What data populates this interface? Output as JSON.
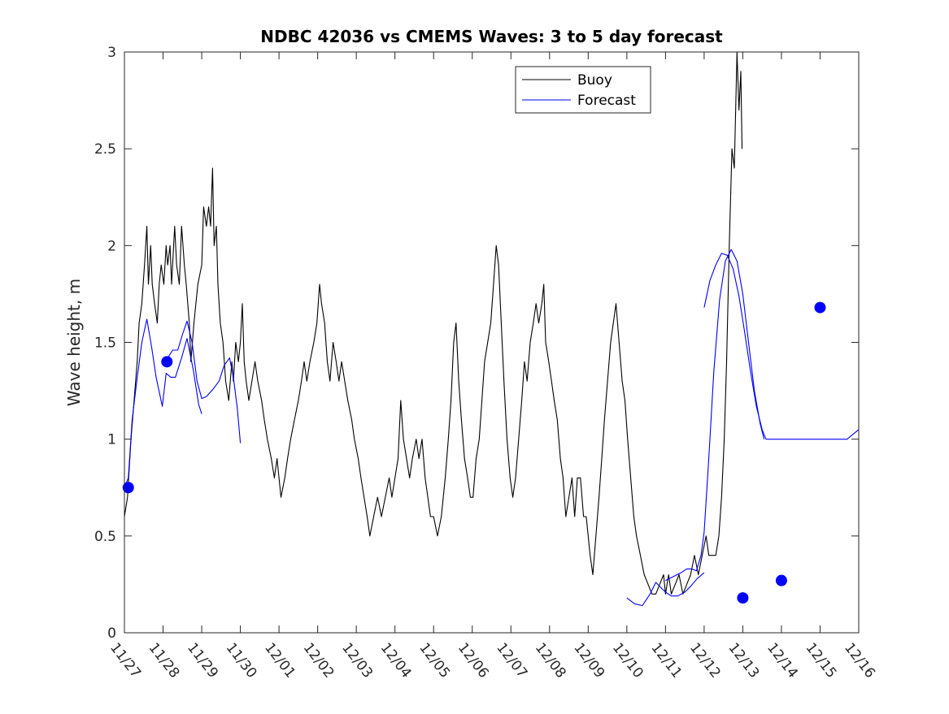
{
  "chart_data": {
    "type": "line",
    "title": "NDBC 42036 vs CMEMS Waves: 3 to 5 day forecast",
    "xlabel": "",
    "ylabel": "Wave height, m",
    "xlim": [
      "11/27",
      "12/16"
    ],
    "ylim": [
      0,
      3
    ],
    "x_tick_labels": [
      "11/27",
      "11/28",
      "11/29",
      "11/30",
      "12/01",
      "12/02",
      "12/03",
      "12/04",
      "12/05",
      "12/06",
      "12/07",
      "12/08",
      "12/09",
      "12/10",
      "12/11",
      "12/12",
      "12/13",
      "12/14",
      "12/15",
      "12/16"
    ],
    "y_ticks": [
      0,
      0.5,
      1,
      1.5,
      2,
      2.5,
      3
    ],
    "y_tick_labels": [
      "0",
      "0.5",
      "1",
      "1.5",
      "2",
      "2.5",
      "3"
    ],
    "grid": false,
    "legend": {
      "position": "top-right",
      "entries": [
        "Buoy",
        "Forecast"
      ]
    },
    "colors": {
      "buoy": "#000000",
      "forecast": "#0000ff",
      "axis": "#262626"
    },
    "series": [
      {
        "name": "Buoy",
        "color": "#000000",
        "points": [
          [
            0.0,
            0.6
          ],
          [
            0.08,
            0.7
          ],
          [
            0.17,
            1.0
          ],
          [
            0.25,
            1.2
          ],
          [
            0.33,
            1.4
          ],
          [
            0.38,
            1.6
          ],
          [
            0.45,
            1.7
          ],
          [
            0.52,
            1.9
          ],
          [
            0.58,
            2.1
          ],
          [
            0.62,
            1.8
          ],
          [
            0.68,
            2.0
          ],
          [
            0.72,
            1.8
          ],
          [
            0.78,
            1.7
          ],
          [
            0.85,
            1.6
          ],
          [
            0.9,
            1.8
          ],
          [
            0.95,
            1.9
          ],
          [
            1.02,
            1.8
          ],
          [
            1.08,
            2.0
          ],
          [
            1.12,
            1.9
          ],
          [
            1.18,
            2.0
          ],
          [
            1.22,
            1.8
          ],
          [
            1.3,
            2.1
          ],
          [
            1.35,
            1.9
          ],
          [
            1.42,
            1.8
          ],
          [
            1.48,
            2.1
          ],
          [
            1.55,
            1.9
          ],
          [
            1.6,
            1.8
          ],
          [
            1.68,
            1.6
          ],
          [
            1.72,
            1.4
          ],
          [
            1.8,
            1.6
          ],
          [
            1.85,
            1.7
          ],
          [
            1.9,
            1.8
          ],
          [
            2.0,
            1.9
          ],
          [
            2.05,
            2.2
          ],
          [
            2.12,
            2.1
          ],
          [
            2.18,
            2.2
          ],
          [
            2.23,
            2.1
          ],
          [
            2.28,
            2.4
          ],
          [
            2.32,
            2.0
          ],
          [
            2.38,
            2.1
          ],
          [
            2.42,
            1.8
          ],
          [
            2.48,
            1.6
          ],
          [
            2.55,
            1.5
          ],
          [
            2.62,
            1.3
          ],
          [
            2.7,
            1.2
          ],
          [
            2.78,
            1.4
          ],
          [
            2.82,
            1.3
          ],
          [
            2.88,
            1.5
          ],
          [
            2.95,
            1.4
          ],
          [
            3.0,
            1.5
          ],
          [
            3.05,
            1.7
          ],
          [
            3.1,
            1.4
          ],
          [
            3.15,
            1.3
          ],
          [
            3.22,
            1.2
          ],
          [
            3.3,
            1.3
          ],
          [
            3.38,
            1.4
          ],
          [
            3.45,
            1.3
          ],
          [
            3.55,
            1.2
          ],
          [
            3.62,
            1.1
          ],
          [
            3.7,
            1.0
          ],
          [
            3.8,
            0.9
          ],
          [
            3.88,
            0.8
          ],
          [
            3.95,
            0.9
          ],
          [
            4.05,
            0.7
          ],
          [
            4.15,
            0.8
          ],
          [
            4.22,
            0.9
          ],
          [
            4.3,
            1.0
          ],
          [
            4.4,
            1.1
          ],
          [
            4.5,
            1.2
          ],
          [
            4.58,
            1.3
          ],
          [
            4.65,
            1.4
          ],
          [
            4.72,
            1.3
          ],
          [
            4.8,
            1.4
          ],
          [
            4.9,
            1.5
          ],
          [
            4.98,
            1.6
          ],
          [
            5.05,
            1.8
          ],
          [
            5.1,
            1.7
          ],
          [
            5.18,
            1.6
          ],
          [
            5.25,
            1.4
          ],
          [
            5.32,
            1.3
          ],
          [
            5.4,
            1.5
          ],
          [
            5.48,
            1.4
          ],
          [
            5.55,
            1.3
          ],
          [
            5.62,
            1.4
          ],
          [
            5.7,
            1.3
          ],
          [
            5.78,
            1.2
          ],
          [
            5.88,
            1.1
          ],
          [
            5.95,
            1.0
          ],
          [
            6.05,
            0.9
          ],
          [
            6.12,
            0.8
          ],
          [
            6.2,
            0.7
          ],
          [
            6.28,
            0.6
          ],
          [
            6.35,
            0.5
          ],
          [
            6.45,
            0.6
          ],
          [
            6.55,
            0.7
          ],
          [
            6.65,
            0.6
          ],
          [
            6.75,
            0.7
          ],
          [
            6.85,
            0.8
          ],
          [
            6.92,
            0.7
          ],
          [
            7.0,
            0.8
          ],
          [
            7.08,
            0.9
          ],
          [
            7.15,
            1.2
          ],
          [
            7.22,
            1.0
          ],
          [
            7.3,
            0.9
          ],
          [
            7.38,
            0.8
          ],
          [
            7.45,
            0.9
          ],
          [
            7.55,
            1.0
          ],
          [
            7.62,
            0.9
          ],
          [
            7.7,
            1.0
          ],
          [
            7.78,
            0.8
          ],
          [
            7.85,
            0.7
          ],
          [
            7.92,
            0.6
          ],
          [
            8.0,
            0.6
          ],
          [
            8.1,
            0.5
          ],
          [
            8.2,
            0.6
          ],
          [
            8.3,
            0.8
          ],
          [
            8.38,
            1.0
          ],
          [
            8.45,
            1.2
          ],
          [
            8.52,
            1.5
          ],
          [
            8.58,
            1.6
          ],
          [
            8.65,
            1.3
          ],
          [
            8.72,
            1.1
          ],
          [
            8.8,
            0.9
          ],
          [
            8.88,
            0.8
          ],
          [
            8.95,
            0.7
          ],
          [
            9.02,
            0.7
          ],
          [
            9.1,
            0.9
          ],
          [
            9.18,
            1.0
          ],
          [
            9.25,
            1.2
          ],
          [
            9.32,
            1.4
          ],
          [
            9.4,
            1.5
          ],
          [
            9.48,
            1.6
          ],
          [
            9.55,
            1.8
          ],
          [
            9.62,
            2.0
          ],
          [
            9.68,
            1.9
          ],
          [
            9.75,
            1.6
          ],
          [
            9.82,
            1.3
          ],
          [
            9.9,
            1.0
          ],
          [
            9.98,
            0.8
          ],
          [
            10.05,
            0.7
          ],
          [
            10.12,
            0.8
          ],
          [
            10.2,
            1.0
          ],
          [
            10.28,
            1.2
          ],
          [
            10.35,
            1.4
          ],
          [
            10.42,
            1.3
          ],
          [
            10.5,
            1.5
          ],
          [
            10.58,
            1.6
          ],
          [
            10.65,
            1.7
          ],
          [
            10.72,
            1.6
          ],
          [
            10.8,
            1.7
          ],
          [
            10.85,
            1.8
          ],
          [
            10.9,
            1.5
          ],
          [
            10.98,
            1.4
          ],
          [
            11.05,
            1.3
          ],
          [
            11.12,
            1.2
          ],
          [
            11.2,
            1.1
          ],
          [
            11.28,
            0.9
          ],
          [
            11.35,
            0.8
          ],
          [
            11.42,
            0.6
          ],
          [
            11.5,
            0.7
          ],
          [
            11.58,
            0.8
          ],
          [
            11.65,
            0.6
          ],
          [
            11.72,
            0.8
          ],
          [
            11.8,
            0.8
          ],
          [
            11.88,
            0.6
          ],
          [
            11.95,
            0.6
          ],
          [
            12.05,
            0.4
          ],
          [
            12.12,
            0.3
          ],
          [
            12.2,
            0.5
          ],
          [
            12.28,
            0.7
          ],
          [
            12.35,
            0.9
          ],
          [
            12.42,
            1.1
          ],
          [
            12.5,
            1.3
          ],
          [
            12.58,
            1.5
          ],
          [
            12.65,
            1.6
          ],
          [
            12.72,
            1.7
          ],
          [
            12.8,
            1.5
          ],
          [
            12.88,
            1.3
          ],
          [
            12.95,
            1.2
          ],
          [
            13.02,
            1.0
          ],
          [
            13.1,
            0.8
          ],
          [
            13.18,
            0.6
          ],
          [
            13.25,
            0.5
          ],
          [
            13.35,
            0.4
          ],
          [
            13.45,
            0.3
          ],
          [
            13.55,
            0.25
          ],
          [
            13.65,
            0.2
          ],
          [
            13.75,
            0.2
          ],
          [
            13.85,
            0.25
          ],
          [
            13.95,
            0.3
          ],
          [
            14.0,
            0.2
          ],
          [
            14.08,
            0.3
          ],
          [
            14.15,
            0.2
          ],
          [
            14.25,
            0.25
          ],
          [
            14.35,
            0.3
          ],
          [
            14.45,
            0.2
          ],
          [
            14.55,
            0.25
          ],
          [
            14.65,
            0.3
          ],
          [
            14.75,
            0.4
          ],
          [
            14.85,
            0.3
          ],
          [
            14.95,
            0.4
          ],
          [
            15.05,
            0.5
          ],
          [
            15.12,
            0.4
          ],
          [
            15.2,
            0.4
          ],
          [
            15.3,
            0.4
          ],
          [
            15.38,
            0.5
          ],
          [
            15.45,
            0.7
          ],
          [
            15.52,
            1.0
          ],
          [
            15.58,
            1.4
          ],
          [
            15.65,
            2.0
          ],
          [
            15.72,
            2.5
          ],
          [
            15.78,
            2.4
          ],
          [
            15.85,
            3.0
          ],
          [
            15.9,
            2.7
          ],
          [
            15.95,
            2.9
          ],
          [
            15.98,
            2.5
          ]
        ]
      },
      {
        "name": "Forecast",
        "color": "#0000ff",
        "points": [
          [
            0.0,
            0.75
          ],
          [
            0.1,
            0.8
          ],
          [
            0.2,
            1.1
          ],
          [
            0.32,
            1.3
          ],
          [
            0.45,
            1.5
          ],
          [
            0.58,
            1.62
          ],
          [
            0.7,
            1.48
          ],
          [
            0.82,
            1.32
          ],
          [
            0.98,
            1.17
          ],
          [
            1.08,
            1.34
          ],
          [
            1.2,
            1.32
          ],
          [
            1.32,
            1.32
          ],
          [
            1.48,
            1.42
          ],
          [
            1.62,
            1.52
          ],
          [
            1.78,
            1.36
          ],
          [
            1.92,
            1.18
          ],
          [
            2.0,
            1.13
          ]
        ]
      },
      {
        "name": "Forecast",
        "color": "#0000ff",
        "points": [
          [
            1.0,
            1.4
          ],
          [
            1.12,
            1.42
          ],
          [
            1.25,
            1.46
          ],
          [
            1.38,
            1.46
          ],
          [
            1.5,
            1.54
          ],
          [
            1.62,
            1.61
          ],
          [
            1.75,
            1.5
          ],
          [
            1.88,
            1.3
          ],
          [
            2.0,
            1.21
          ],
          [
            2.12,
            1.22
          ],
          [
            2.3,
            1.26
          ],
          [
            2.45,
            1.3
          ],
          [
            2.58,
            1.38
          ],
          [
            2.72,
            1.42
          ],
          [
            2.82,
            1.32
          ],
          [
            2.92,
            1.16
          ],
          [
            3.0,
            0.98
          ]
        ]
      },
      {
        "name": "Forecast",
        "color": "#0000ff",
        "points": [
          [
            13.0,
            0.18
          ],
          [
            13.2,
            0.15
          ],
          [
            13.4,
            0.14
          ],
          [
            13.6,
            0.2
          ],
          [
            13.75,
            0.26
          ],
          [
            13.9,
            0.23
          ],
          [
            14.0,
            0.21
          ],
          [
            14.15,
            0.19
          ],
          [
            14.32,
            0.19
          ],
          [
            14.5,
            0.21
          ],
          [
            14.65,
            0.24
          ],
          [
            14.82,
            0.28
          ],
          [
            15.0,
            0.31
          ]
        ]
      },
      {
        "name": "Forecast",
        "color": "#0000ff",
        "points": [
          [
            14.0,
            0.27
          ],
          [
            14.2,
            0.29
          ],
          [
            14.4,
            0.31
          ],
          [
            14.55,
            0.33
          ],
          [
            14.68,
            0.33
          ],
          [
            14.8,
            0.32
          ],
          [
            14.92,
            0.4
          ],
          [
            15.0,
            0.52
          ],
          [
            15.12,
            0.9
          ],
          [
            15.25,
            1.35
          ],
          [
            15.4,
            1.72
          ],
          [
            15.55,
            1.92
          ],
          [
            15.7,
            1.98
          ],
          [
            15.85,
            1.92
          ],
          [
            16.0,
            1.75
          ],
          [
            16.15,
            1.5
          ],
          [
            16.3,
            1.25
          ],
          [
            16.45,
            1.08
          ],
          [
            16.55,
            1.0
          ]
        ]
      },
      {
        "name": "Forecast",
        "color": "#0000ff",
        "points": [
          [
            15.0,
            1.68
          ],
          [
            15.15,
            1.82
          ],
          [
            15.3,
            1.9
          ],
          [
            15.45,
            1.96
          ],
          [
            15.6,
            1.95
          ],
          [
            15.75,
            1.88
          ],
          [
            15.9,
            1.74
          ],
          [
            16.05,
            1.55
          ],
          [
            16.2,
            1.35
          ],
          [
            16.35,
            1.17
          ],
          [
            16.5,
            1.05
          ],
          [
            16.6,
            1.0
          ],
          [
            17.0,
            1.0
          ],
          [
            17.2,
            1.0
          ],
          [
            18.1,
            1.0
          ],
          [
            18.4,
            1.0
          ],
          [
            18.7,
            1.0
          ],
          [
            19.0,
            1.05
          ]
        ]
      }
    ],
    "markers": {
      "name": "Forecast",
      "color": "#0000ff",
      "points": [
        [
          0.1,
          0.75
        ],
        [
          1.1,
          1.4
        ],
        [
          16.0,
          0.18
        ],
        [
          17.0,
          0.27
        ],
        [
          18.0,
          1.68
        ]
      ]
    }
  }
}
